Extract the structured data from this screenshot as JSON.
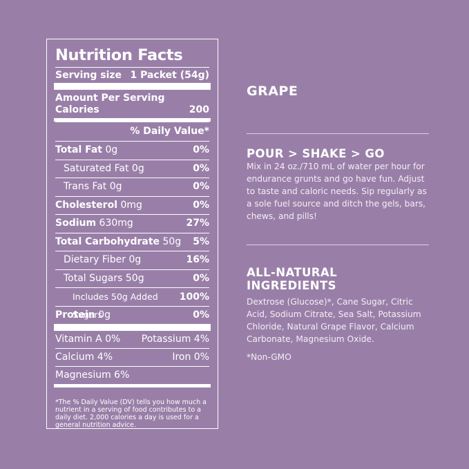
{
  "label": {
    "title": "Nutrition Facts",
    "serving_size_label": "Serving size",
    "serving_size_value": "1 Packet (54g)",
    "amount_per_serving": "Amount Per Serving",
    "calories_label": "Calories",
    "calories_value": "200",
    "daily_value_header": "% Daily Value*",
    "nutrients": [
      {
        "name": "Total Fat",
        "amount": "0g",
        "dv": "0%"
      },
      {
        "name": "Saturated Fat",
        "amount": "0g",
        "dv": "0%"
      },
      {
        "name": "Trans Fat",
        "amount": "0g",
        "dv": "0%"
      },
      {
        "name": "Cholesterol",
        "amount": "0mg",
        "dv": "0%"
      },
      {
        "name": "Sodium",
        "amount": "630mg",
        "dv": "27%"
      },
      {
        "name": "Total Carbohydrate",
        "amount": "50g",
        "dv": "5%"
      },
      {
        "name": "Dietary Fiber",
        "amount": "0g",
        "dv": "16%"
      },
      {
        "name": "Total Sugars",
        "amount": "50g",
        "dv": "0%"
      },
      {
        "name": "Includes 50g Added Sugars",
        "amount": "",
        "dv": "100%"
      },
      {
        "name": "Protein",
        "amount": "0g",
        "dv": "0%"
      }
    ],
    "vitamin_a": "Vitamin A 0%",
    "potassium": "Potassium 4%",
    "calcium": "Calcium 4%",
    "iron": "Iron 0%",
    "magnesium": "Magnesium 6%",
    "footnote": "*The % Daily Value (DV) tells you how much a nutrient in a serving of food contributes to a daily diet. 2,000 calories a day is used for a general nutrition advice."
  },
  "flavor": "GRAPE",
  "directions": {
    "heading": "POUR > SHAKE > GO",
    "text": "Mix in 24 oz./710 mL of water per hour for endurance grunts and go have fun. Adjust to taste and caloric needs. Sip regularly as a sole fuel source and ditch the gels, bars, chews, and pills!"
  },
  "ingredients": {
    "heading": "ALL-NATURAL INGREDIENTS",
    "text": "Dextrose (Glucose)*, Cane Sugar, Citric Acid, Sodium Citrate, Sea Salt, Potassium Chloride, Natural Grape Flavor, Calcium Carbonate, Magnesium Oxide.",
    "note": "*Non-GMO"
  },
  "colors": {
    "background": "#997fa8",
    "text": "#ffffff"
  }
}
